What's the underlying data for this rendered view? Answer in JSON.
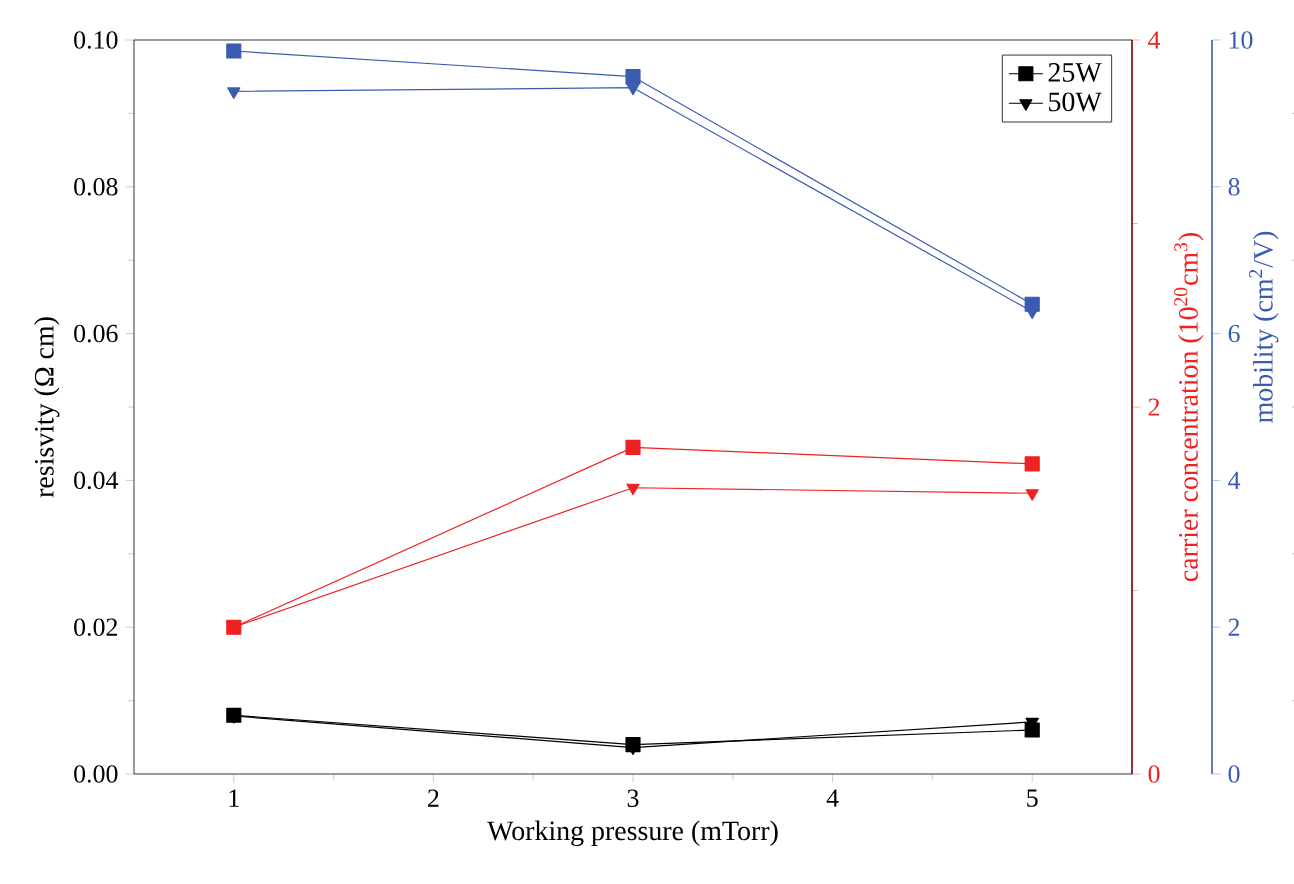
{
  "chart_data": {
    "type": "line",
    "xlabel": "Working pressure (mTorr)",
    "ylabel": "resisvity (Ω cm)",
    "y2label": "carrier concentration (10$^{20}$cm$^{3}$)",
    "y3label": "mobility (cm$^{2}$/V)",
    "x": [
      1,
      3,
      5
    ],
    "xlim": [
      0.5,
      5.5
    ],
    "xticks": [
      1,
      2,
      3,
      4,
      5
    ],
    "ylim": [
      0,
      0.1
    ],
    "yticks": [
      {
        "value": 0,
        "label": "0.00"
      },
      {
        "value": 0.02,
        "label": "0.02"
      },
      {
        "value": 0.04,
        "label": "0.04"
      },
      {
        "value": 0.06,
        "label": "0.06"
      },
      {
        "value": 0.08,
        "label": "0.08"
      },
      {
        "value": 0.1,
        "label": "0.10"
      }
    ],
    "y2lim": [
      0,
      4
    ],
    "y2ticks": [
      0,
      2,
      4
    ],
    "y3lim": [
      0,
      10
    ],
    "y3ticks": [
      0,
      2,
      4,
      6,
      8,
      10
    ],
    "legend": "top right",
    "series": [
      {
        "name": "25W",
        "color": "#000000",
        "marker": "square",
        "values": [
          0.008,
          0.004,
          0.006
        ]
      },
      {
        "name": "50W",
        "color": "#000000",
        "marker": "triangle",
        "values": [
          0.0079,
          0.0036,
          0.0071
        ]
      },
      {
        "color": "#ee2222",
        "marker": "square",
        "axis": "y2",
        "values": [
          0.8,
          1.78,
          1.69
        ]
      },
      {
        "color": "#ee2222",
        "marker": "triangle",
        "axis": "y2",
        "values": [
          0.8,
          1.56,
          1.53
        ]
      },
      {
        "color": "#3a5cb0",
        "marker": "square",
        "axis": "y3",
        "values": [
          9.85,
          9.5,
          6.4
        ]
      },
      {
        "color": "#3a5cb0",
        "marker": "triangle",
        "axis": "y3",
        "values": [
          9.3,
          9.35,
          6.3
        ]
      }
    ]
  }
}
